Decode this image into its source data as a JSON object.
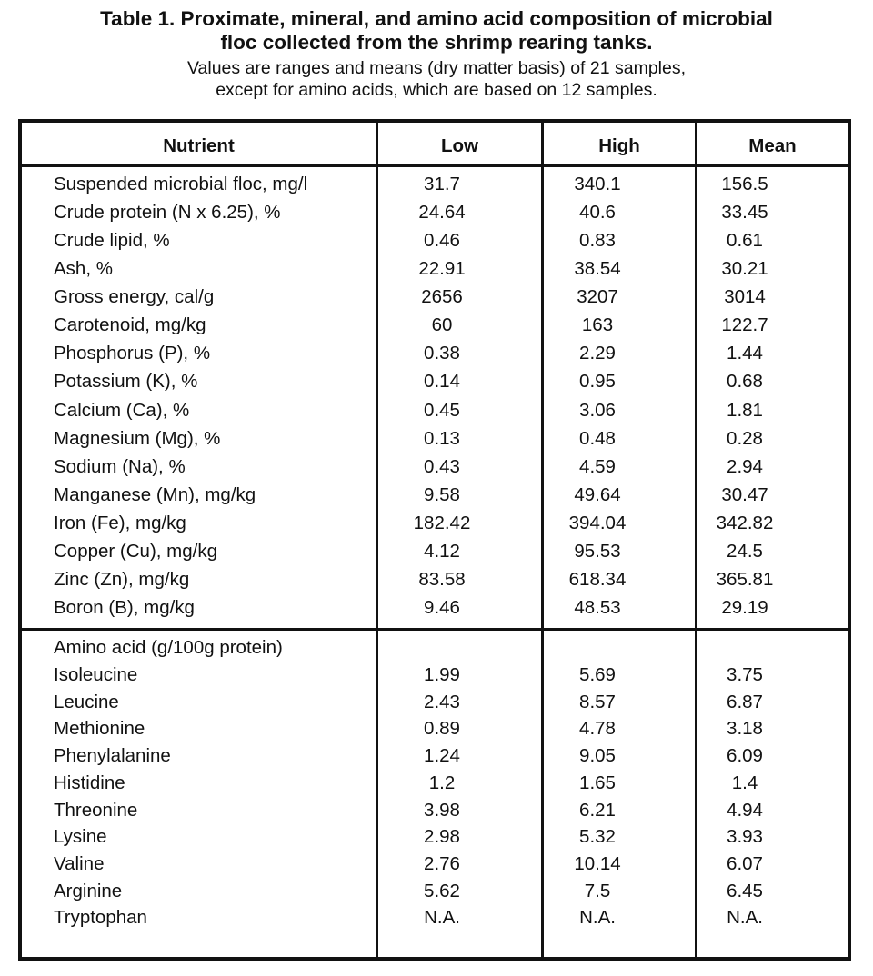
{
  "title": {
    "line1": "Table 1. Proximate, mineral, and amino acid composition of microbial",
    "line2": "floc collected from the shrimp rearing tanks."
  },
  "subtitle": {
    "line1": "Values are ranges and means (dry matter basis) of 21 samples,",
    "line2": "except for amino acids, which are based on 12 samples."
  },
  "columns": [
    "Nutrient",
    "Low",
    "High",
    "Mean"
  ],
  "proximate_rows": [
    [
      "Suspended microbial floc, mg/l",
      "31.7",
      "340.1",
      "156.5"
    ],
    [
      "Crude protein (N x 6.25), %",
      "24.64",
      "40.6",
      "33.45"
    ],
    [
      "Crude lipid, %",
      "0.46",
      "0.83",
      "0.61"
    ],
    [
      "Ash, %",
      "22.91",
      "38.54",
      "30.21"
    ],
    [
      "Gross energy, cal/g",
      "2656",
      "3207",
      "3014"
    ],
    [
      "Carotenoid, mg/kg",
      "60",
      "163",
      "122.7"
    ],
    [
      "Phosphorus (P), %",
      "0.38",
      "2.29",
      "1.44"
    ],
    [
      "Potassium (K), %",
      "0.14",
      "0.95",
      "0.68"
    ],
    [
      "Calcium (Ca), %",
      "0.45",
      "3.06",
      "1.81"
    ],
    [
      "Magnesium (Mg), %",
      "0.13",
      "0.48",
      "0.28"
    ],
    [
      "Sodium (Na), %",
      "0.43",
      "4.59",
      "2.94"
    ],
    [
      "Manganese (Mn), mg/kg",
      "9.58",
      "49.64",
      "30.47"
    ],
    [
      "Iron (Fe), mg/kg",
      "182.42",
      "394.04",
      "342.82"
    ],
    [
      "Copper (Cu), mg/kg",
      "4.12",
      "95.53",
      "24.5"
    ],
    [
      "Zinc (Zn), mg/kg",
      "83.58",
      "618.34",
      "365.81"
    ],
    [
      "Boron (B), mg/kg",
      "9.46",
      "48.53",
      "29.19"
    ]
  ],
  "amino_heading": "Amino acid (g/100g protein)",
  "amino_rows": [
    [
      "Isoleucine",
      "1.99",
      "5.69",
      "3.75"
    ],
    [
      "Leucine",
      "2.43",
      "8.57",
      "6.87"
    ],
    [
      "Methionine",
      "0.89",
      "4.78",
      "3.18"
    ],
    [
      "Phenylalanine",
      "1.24",
      "9.05",
      "6.09"
    ],
    [
      "Histidine",
      "1.2",
      "1.65",
      "1.4"
    ],
    [
      "Threonine",
      "3.98",
      "6.21",
      "4.94"
    ],
    [
      "Lysine",
      "2.98",
      "5.32",
      "3.93"
    ],
    [
      "Valine",
      "2.76",
      "10.14",
      "6.07"
    ],
    [
      "Arginine",
      "5.62",
      "7.5",
      "6.45"
    ],
    [
      "Tryptophan",
      "N.A.",
      "N.A.",
      "N.A."
    ]
  ]
}
